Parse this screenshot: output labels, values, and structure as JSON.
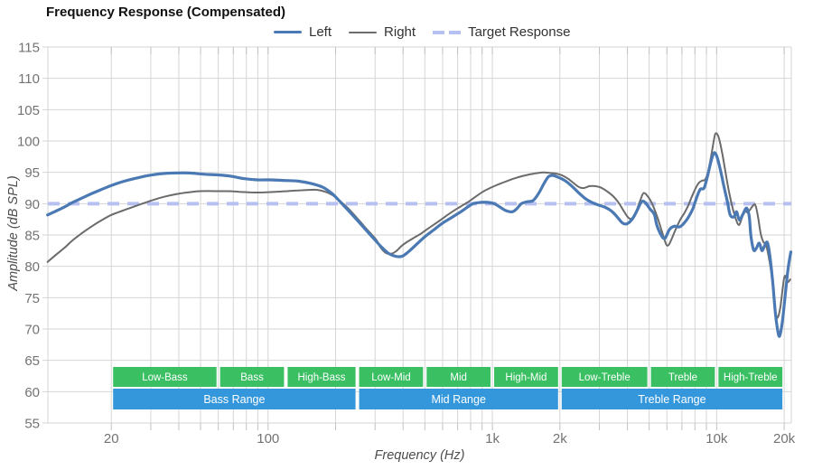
{
  "title": "Frequency Response (Compensated)",
  "legend": {
    "items": [
      {
        "label": "Left",
        "color": "#4a79b4",
        "style": "solid",
        "line_width": 3.5
      },
      {
        "label": "Right",
        "color": "#6b6b6b",
        "style": "solid",
        "line_width": 2
      },
      {
        "label": "Target Response",
        "color": "#b6c1f2",
        "style": "dashed",
        "line_width": 4
      }
    ]
  },
  "axes": {
    "x": {
      "title": "Frequency (Hz)",
      "scale": "log",
      "min_hz": 10.43,
      "max_hz": 21520,
      "gridline_hz": [
        20,
        30,
        40,
        50,
        60,
        70,
        80,
        90,
        100,
        200,
        300,
        400,
        500,
        600,
        700,
        800,
        900,
        1000,
        2000,
        3000,
        4000,
        5000,
        6000,
        7000,
        8000,
        9000,
        10000,
        20000
      ],
      "tick_labels": [
        {
          "hz": 20,
          "label": "20"
        },
        {
          "hz": 100,
          "label": "100"
        },
        {
          "hz": 1000,
          "label": "1k"
        },
        {
          "hz": 2000,
          "label": "2k"
        },
        {
          "hz": 10000,
          "label": "10k"
        },
        {
          "hz": 20000,
          "label": "20k"
        }
      ]
    },
    "y": {
      "title": "Amplitude (dB SPL)",
      "min": 55,
      "max": 115,
      "tick_step": 5,
      "tick_labels": [
        "55",
        "60",
        "65",
        "70",
        "75",
        "80",
        "85",
        "90",
        "95",
        "100",
        "105",
        "110",
        "115"
      ]
    }
  },
  "bands": {
    "sub_color": "#3abf62",
    "range_color": "#3497dc",
    "sub": [
      {
        "label": "Low-Bass",
        "from_hz": 20,
        "to_hz": 60
      },
      {
        "label": "Bass",
        "from_hz": 60,
        "to_hz": 120
      },
      {
        "label": "High-Bass",
        "from_hz": 120,
        "to_hz": 250
      },
      {
        "label": "Low-Mid",
        "from_hz": 250,
        "to_hz": 500
      },
      {
        "label": "Mid",
        "from_hz": 500,
        "to_hz": 1000
      },
      {
        "label": "High-Mid",
        "from_hz": 1000,
        "to_hz": 2000
      },
      {
        "label": "Low-Treble",
        "from_hz": 2000,
        "to_hz": 5000
      },
      {
        "label": "Treble",
        "from_hz": 5000,
        "to_hz": 10000
      },
      {
        "label": "High-Treble",
        "from_hz": 10000,
        "to_hz": 20000
      }
    ],
    "range": [
      {
        "label": "Bass Range",
        "from_hz": 20,
        "to_hz": 250
      },
      {
        "label": "Mid Range",
        "from_hz": 250,
        "to_hz": 2000
      },
      {
        "label": "Treble Range",
        "from_hz": 2000,
        "to_hz": 20000
      }
    ]
  },
  "chart_data": {
    "type": "line",
    "x_unit": "Hz",
    "y_unit": "dB SPL",
    "grid": true,
    "legend_position": "top",
    "target_response_db": 90,
    "series": [
      {
        "name": "Left",
        "color": "#4a79b4",
        "width": 3.2,
        "points": [
          [
            10.4,
            88.2
          ],
          [
            11.3,
            88.8
          ],
          [
            12.4,
            89.5
          ],
          [
            13.3,
            90.1
          ],
          [
            14.6,
            90.8
          ],
          [
            16.1,
            91.5
          ],
          [
            17.9,
            92.2
          ],
          [
            20,
            92.9
          ],
          [
            22.9,
            93.6
          ],
          [
            26,
            94.1
          ],
          [
            29.4,
            94.5
          ],
          [
            33.7,
            94.8
          ],
          [
            38.8,
            94.9
          ],
          [
            44.6,
            94.9
          ],
          [
            51.3,
            94.7
          ],
          [
            58.9,
            94.6
          ],
          [
            67.7,
            94.4
          ],
          [
            77.8,
            94.0
          ],
          [
            89.5,
            93.8
          ],
          [
            103,
            93.8
          ],
          [
            118,
            93.7
          ],
          [
            136,
            93.6
          ],
          [
            156,
            93.2
          ],
          [
            176,
            92.6
          ],
          [
            193,
            91.6
          ],
          [
            206,
            90.6
          ],
          [
            220,
            89.5
          ],
          [
            242,
            87.9
          ],
          [
            267,
            86.2
          ],
          [
            293,
            84.6
          ],
          [
            322,
            83.0
          ],
          [
            347,
            82.0
          ],
          [
            371,
            81.6
          ],
          [
            395,
            81.6
          ],
          [
            422,
            82.3
          ],
          [
            462,
            83.6
          ],
          [
            499,
            84.7
          ],
          [
            547,
            85.8
          ],
          [
            600,
            86.9
          ],
          [
            659,
            87.8
          ],
          [
            723,
            88.7
          ],
          [
            778,
            89.5
          ],
          [
            822,
            90.0
          ],
          [
            886,
            90.2
          ],
          [
            955,
            90.2
          ],
          [
            1019,
            90.0
          ],
          [
            1087,
            89.4
          ],
          [
            1149,
            88.9
          ],
          [
            1226,
            88.7
          ],
          [
            1285,
            89.2
          ],
          [
            1346,
            90.0
          ],
          [
            1423,
            90.3
          ],
          [
            1518,
            90.5
          ],
          [
            1606,
            91.6
          ],
          [
            1698,
            93.2
          ],
          [
            1778,
            94.3
          ],
          [
            1862,
            94.5
          ],
          [
            1968,
            94.2
          ],
          [
            2102,
            93.7
          ],
          [
            2244,
            92.9
          ],
          [
            2416,
            91.8
          ],
          [
            2600,
            90.8
          ],
          [
            2778,
            90.2
          ],
          [
            2964,
            89.8
          ],
          [
            3192,
            89.4
          ],
          [
            3404,
            88.8
          ],
          [
            3598,
            87.9
          ],
          [
            3809,
            86.9
          ],
          [
            3990,
            86.8
          ],
          [
            4217,
            87.6
          ],
          [
            4417,
            88.9
          ],
          [
            4625,
            90.3
          ],
          [
            4797,
            90.2
          ],
          [
            5031,
            89.2
          ],
          [
            5270,
            88.3
          ],
          [
            5418,
            86.5
          ],
          [
            5674,
            84.9
          ],
          [
            5888,
            84.5
          ],
          [
            6166,
            85.9
          ],
          [
            6464,
            86.4
          ],
          [
            6834,
            86.3
          ],
          [
            7158,
            86.9
          ],
          [
            7499,
            87.9
          ],
          [
            7852,
            89.3
          ],
          [
            8147,
            91.0
          ],
          [
            8453,
            92.3
          ],
          [
            8790,
            92.5
          ],
          [
            9120,
            94.5
          ],
          [
            9462,
            96.9
          ],
          [
            9727,
            98.1
          ],
          [
            10000,
            97.6
          ],
          [
            10375,
            95.5
          ],
          [
            10765,
            92.8
          ],
          [
            11169,
            90.3
          ],
          [
            11482,
            88.2
          ],
          [
            11940,
            87.9
          ],
          [
            12270,
            88.7
          ],
          [
            12618,
            87.4
          ],
          [
            13096,
            88.3
          ],
          [
            13583,
            89.3
          ],
          [
            13964,
            88.0
          ],
          [
            14223,
            84.8
          ],
          [
            14622,
            82.6
          ],
          [
            15031,
            82.9
          ],
          [
            15488,
            83.7
          ],
          [
            15922,
            82.5
          ],
          [
            16368,
            83.3
          ],
          [
            16827,
            83.8
          ],
          [
            17298,
            81.5
          ],
          [
            17783,
            77.5
          ],
          [
            18281,
            72.5
          ],
          [
            18793,
            69.4
          ],
          [
            19142,
            69.0
          ],
          [
            19679,
            71.5
          ],
          [
            20230,
            75.5
          ],
          [
            20845,
            79.8
          ],
          [
            21428,
            82.3
          ]
        ]
      },
      {
        "name": "Right",
        "color": "#6b6b6b",
        "width": 2,
        "points": [
          [
            10.4,
            80.7
          ],
          [
            11.3,
            81.8
          ],
          [
            12.4,
            83.0
          ],
          [
            13.5,
            84.2
          ],
          [
            14.8,
            85.3
          ],
          [
            16.4,
            86.4
          ],
          [
            18.2,
            87.4
          ],
          [
            20,
            88.2
          ],
          [
            22.5,
            88.9
          ],
          [
            25.1,
            89.5
          ],
          [
            27.5,
            90.0
          ],
          [
            30.8,
            90.6
          ],
          [
            34.4,
            91.1
          ],
          [
            38.8,
            91.5
          ],
          [
            43.8,
            91.8
          ],
          [
            49.9,
            92.0
          ],
          [
            57.8,
            92.0
          ],
          [
            66.1,
            92.0
          ],
          [
            74.3,
            91.9
          ],
          [
            83.7,
            91.8
          ],
          [
            95.4,
            91.8
          ],
          [
            108,
            91.9
          ],
          [
            122,
            92.0
          ],
          [
            136,
            92.1
          ],
          [
            152,
            92.2
          ],
          [
            166,
            92.2
          ],
          [
            180,
            91.9
          ],
          [
            193,
            91.4
          ],
          [
            205,
            90.7
          ],
          [
            216,
            90.0
          ],
          [
            234,
            88.8
          ],
          [
            255,
            87.3
          ],
          [
            279,
            85.7
          ],
          [
            304,
            84.2
          ],
          [
            316,
            83.1
          ],
          [
            333,
            82.2
          ],
          [
            352,
            82.0
          ],
          [
            372,
            82.4
          ],
          [
            395,
            83.3
          ],
          [
            417,
            83.9
          ],
          [
            449,
            84.6
          ],
          [
            484,
            85.3
          ],
          [
            520,
            86.1
          ],
          [
            567,
            87.0
          ],
          [
            614,
            87.9
          ],
          [
            668,
            88.8
          ],
          [
            726,
            89.6
          ],
          [
            782,
            90.3
          ],
          [
            841,
            91.1
          ],
          [
            907,
            91.9
          ],
          [
            977,
            92.5
          ],
          [
            1052,
            93.0
          ],
          [
            1159,
            93.6
          ],
          [
            1271,
            94.1
          ],
          [
            1397,
            94.5
          ],
          [
            1532,
            94.8
          ],
          [
            1681,
            95.0
          ],
          [
            1812,
            94.9
          ],
          [
            1929,
            94.8
          ],
          [
            2051,
            94.5
          ],
          [
            2171,
            94.0
          ],
          [
            2317,
            93.2
          ],
          [
            2449,
            92.6
          ],
          [
            2563,
            92.5
          ],
          [
            2712,
            92.8
          ],
          [
            2870,
            92.8
          ],
          [
            3034,
            92.6
          ],
          [
            3236,
            92.0
          ],
          [
            3452,
            91.2
          ],
          [
            3648,
            90.2
          ],
          [
            3828,
            89.0
          ],
          [
            4009,
            87.9
          ],
          [
            4159,
            87.6
          ],
          [
            4355,
            88.6
          ],
          [
            4560,
            90.5
          ],
          [
            4731,
            91.7
          ],
          [
            4966,
            91.0
          ],
          [
            5200,
            89.7
          ],
          [
            5445,
            87.8
          ],
          [
            5674,
            85.8
          ],
          [
            5943,
            83.6
          ],
          [
            6109,
            83.4
          ],
          [
            6339,
            84.6
          ],
          [
            6622,
            86.2
          ],
          [
            6918,
            87.6
          ],
          [
            7178,
            88.5
          ],
          [
            7447,
            89.6
          ],
          [
            7727,
            91.0
          ],
          [
            8017,
            92.3
          ],
          [
            8318,
            93.3
          ],
          [
            8630,
            93.7
          ],
          [
            8872,
            93.8
          ],
          [
            9141,
            95.0
          ],
          [
            9419,
            97.3
          ],
          [
            9705,
            100.0
          ],
          [
            9886,
            101.2
          ],
          [
            10186,
            100.7
          ],
          [
            10569,
            98.2
          ],
          [
            10965,
            94.9
          ],
          [
            11376,
            91.7
          ],
          [
            11803,
            89.2
          ],
          [
            12246,
            87.3
          ],
          [
            12589,
            86.6
          ],
          [
            12942,
            87.7
          ],
          [
            13305,
            88.9
          ],
          [
            13677,
            88.6
          ],
          [
            14060,
            89.0
          ],
          [
            14454,
            89.6
          ],
          [
            14859,
            89.8
          ],
          [
            15276,
            88.0
          ],
          [
            15704,
            85.3
          ],
          [
            16144,
            83.9
          ],
          [
            16596,
            83.4
          ],
          [
            17061,
            81.5
          ],
          [
            17539,
            78.9
          ],
          [
            18030,
            74.9
          ],
          [
            18365,
            72.4
          ],
          [
            18707,
            71.8
          ],
          [
            19231,
            73.5
          ],
          [
            19770,
            77.0
          ],
          [
            20137,
            78.5
          ],
          [
            20701,
            77.5
          ],
          [
            21281,
            77.9
          ]
        ]
      },
      {
        "name": "Target Response",
        "color": "#b6c1f2",
        "width": 4,
        "style": "dashed",
        "constant_db": 90
      }
    ]
  },
  "colors": {
    "grid": "#d6d6d6",
    "tick_label": "#737373",
    "axis_title": "#4d4d4d",
    "background": "#ffffff"
  }
}
